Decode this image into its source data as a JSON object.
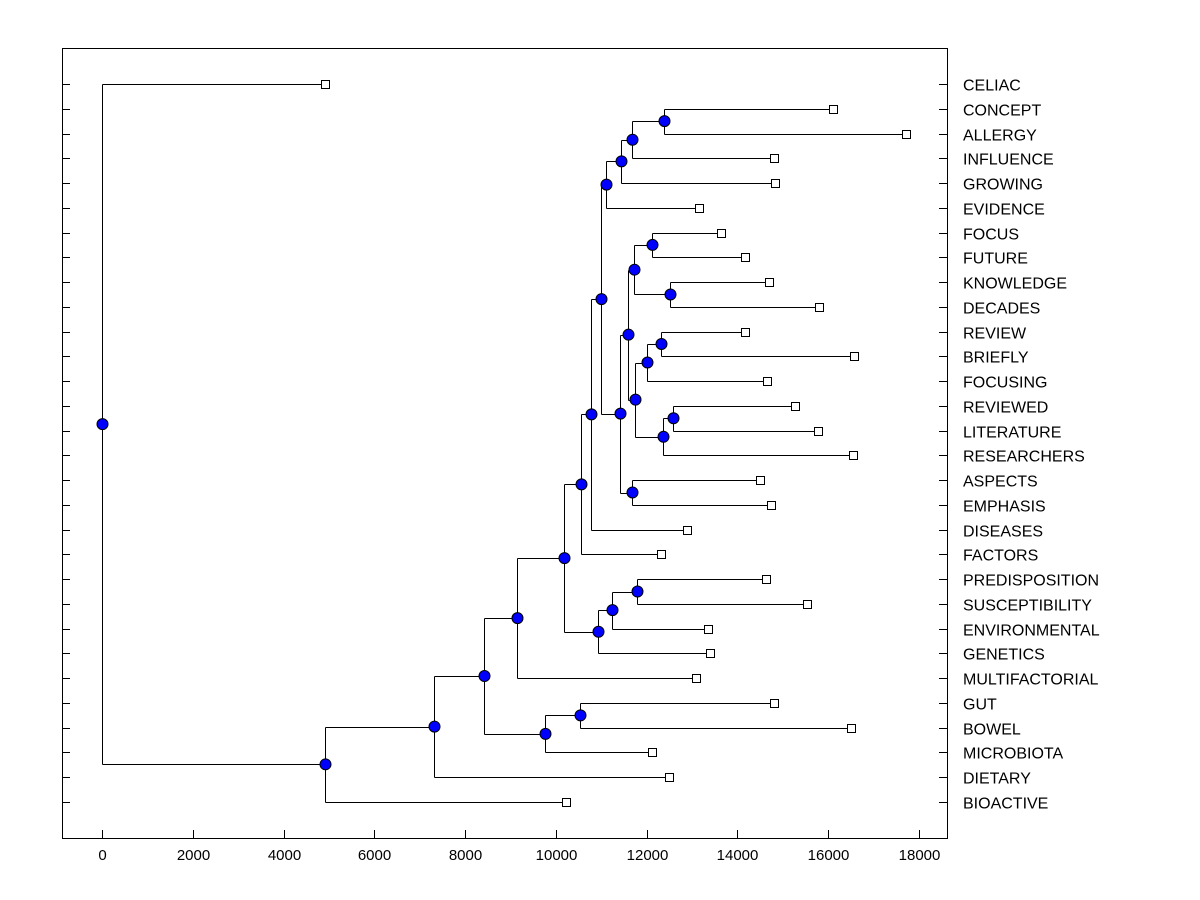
{
  "chart_data": {
    "type": "dendrogram",
    "orientation": "horizontal",
    "xlim": [
      -900,
      18600
    ],
    "xticks": [
      0,
      2000,
      4000,
      6000,
      8000,
      10000,
      12000,
      14000,
      16000,
      18000
    ],
    "node_color": "#0000ff",
    "tree": {
      "height": 0,
      "children": [
        {
          "label": "CELIAC",
          "height": 4913
        },
        {
          "height": 4913,
          "children": [
            {
              "height": 7314,
              "children": [
                {
                  "height": 8416,
                  "children": [
                    {
                      "height": 9143,
                      "children": [
                        {
                          "height": 10178,
                          "children": [
                            {
                              "height": 10553,
                              "children": [
                                {
                                  "height": 10773,
                                  "children": [
                                    {
                                      "height": 10993,
                                      "children": [
                                        {
                                          "height": 11104,
                                          "children": [
                                            {
                                              "height": 11434,
                                              "children": [
                                                {
                                                  "height": 11676,
                                                  "children": [
                                                    {
                                                      "height": 12382,
                                                      "children": [
                                                        {
                                                          "label": "CONCEPT",
                                                          "height": 16105
                                                        },
                                                        {
                                                          "label": "ALLERGY",
                                                          "height": 17713
                                                        }
                                                      ]
                                                    },
                                                    {
                                                      "label": "INFLUENCE",
                                                      "height": 14805
                                                    }
                                                  ]
                                                },
                                                {
                                                  "label": "GROWING",
                                                  "height": 14827
                                                }
                                              ]
                                            },
                                            {
                                              "label": "EVIDENCE",
                                              "height": 13153
                                            }
                                          ]
                                        },
                                        {
                                          "height": 11412,
                                          "children": [
                                            {
                                              "height": 11588,
                                              "children": [
                                                {
                                                  "height": 11720,
                                                  "children": [
                                                    {
                                                      "height": 12117,
                                                      "children": [
                                                        {
                                                          "label": "FOCUS",
                                                          "height": 13637
                                                        },
                                                        {
                                                          "label": "FUTURE",
                                                          "height": 14166
                                                        }
                                                      ]
                                                    },
                                                    {
                                                      "height": 12514,
                                                      "children": [
                                                        {
                                                          "label": "KNOWLEDGE",
                                                          "height": 14695
                                                        },
                                                        {
                                                          "label": "DECADES",
                                                          "height": 15796
                                                        }
                                                      ]
                                                    }
                                                  ]
                                                },
                                                {
                                                  "height": 11742,
                                                  "children": [
                                                    {
                                                      "height": 12007,
                                                      "children": [
                                                        {
                                                          "height": 12315,
                                                          "children": [
                                                            {
                                                              "label": "REVIEW",
                                                              "height": 14166
                                                            },
                                                            {
                                                              "label": "BRIEFLY",
                                                              "height": 16567
                                                            }
                                                          ]
                                                        },
                                                        {
                                                          "label": "FOCUSING",
                                                          "height": 14651
                                                        }
                                                      ]
                                                    },
                                                    {
                                                      "height": 12360,
                                                      "children": [
                                                        {
                                                          "height": 12580,
                                                          "children": [
                                                            {
                                                              "label": "REVIEWED",
                                                              "height": 15267
                                                            },
                                                            {
                                                              "label": "LITERATURE",
                                                              "height": 15774
                                                            }
                                                          ]
                                                        },
                                                        {
                                                          "label": "RESEARCHERS",
                                                          "height": 16545
                                                        }
                                                      ]
                                                    }
                                                  ]
                                                }
                                              ]
                                            },
                                            {
                                              "height": 11676,
                                              "children": [
                                                {
                                                  "label": "ASPECTS",
                                                  "height": 14496
                                                },
                                                {
                                                  "label": "EMPHASIS",
                                                  "height": 14739
                                                }
                                              ]
                                            }
                                          ]
                                        }
                                      ]
                                    },
                                    {
                                      "label": "DISEASES",
                                      "height": 12888
                                    }
                                  ]
                                },
                                {
                                  "label": "FACTORS",
                                  "height": 12315
                                }
                              ]
                            },
                            {
                              "height": 10927,
                              "children": [
                                {
                                  "height": 11236,
                                  "children": [
                                    {
                                      "height": 11787,
                                      "children": [
                                        {
                                          "label": "PREDISPOSITION",
                                          "height": 14629
                                        },
                                        {
                                          "label": "SUSCEPTIBILITY",
                                          "height": 15532
                                        }
                                      ]
                                    },
                                    {
                                      "label": "ENVIRONMENTAL",
                                      "height": 13351
                                    }
                                  ]
                                },
                                {
                                  "label": "GENETICS",
                                  "height": 13395
                                }
                              ]
                            }
                          ]
                        },
                        {
                          "label": "MULTIFACTORIAL",
                          "height": 13086
                        }
                      ]
                    },
                    {
                      "height": 9760,
                      "children": [
                        {
                          "height": 10531,
                          "children": [
                            {
                              "label": "GUT",
                              "height": 14805
                            },
                            {
                              "label": "BOWEL",
                              "height": 16501
                            }
                          ]
                        },
                        {
                          "label": "MICROBIOTA",
                          "height": 12117
                        }
                      ]
                    }
                  ]
                },
                {
                  "label": "DIETARY",
                  "height": 12492
                }
              ]
            },
            {
              "label": "BIOACTIVE",
              "height": 10222
            }
          ]
        }
      ]
    }
  }
}
